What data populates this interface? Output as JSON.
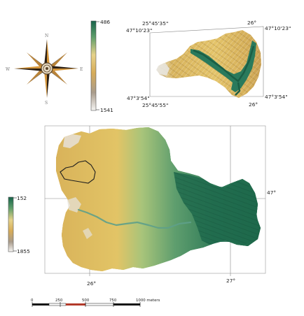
{
  "compass": {
    "north": "N",
    "east": "E",
    "south": "S",
    "west": "W",
    "icon": "compass-rose-icon"
  },
  "inset_map": {
    "legend": {
      "min": "486",
      "max": "1541"
    },
    "coords": {
      "top_left_lon": "25°45'35\"",
      "top_left_lat": "47°10'23\"",
      "top_right_lon": "26°",
      "top_right_lat": "47°10'23\"",
      "bottom_left_lat": "47°3'54\"",
      "bottom_left_lon": "25°45'55\"",
      "bottom_right_lon": "26°",
      "bottom_right_lat": "47°3'54\""
    }
  },
  "main_map": {
    "legend": {
      "min": "152",
      "max": "1855"
    },
    "grid_labels": {
      "lon_left": "26°",
      "lon_right": "27°",
      "lat": "47°"
    }
  },
  "scale_bar": {
    "ticks": [
      "0",
      "250",
      "500",
      "750",
      "1000 meters"
    ]
  },
  "colors": {
    "lowland_green": "#1e6b4c",
    "midland_sage": "#8db27a",
    "upland_yellow": "#e8c860",
    "highland_tan": "#c79a52",
    "peak_grey": "#e4e1dc"
  }
}
